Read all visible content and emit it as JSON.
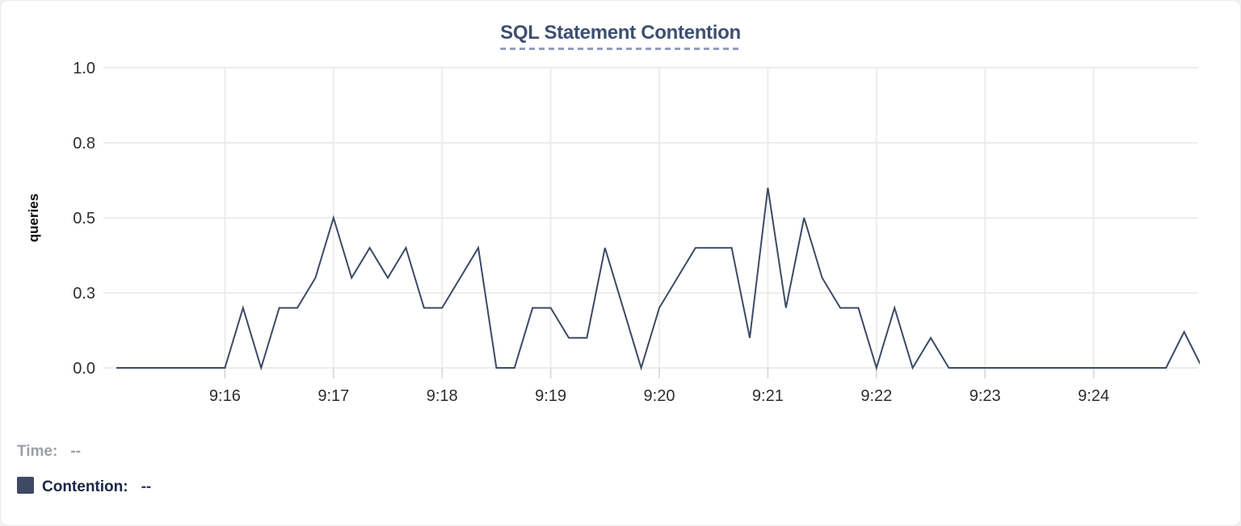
{
  "card": {
    "title": "SQL Statement Contention"
  },
  "colors": {
    "title": "#3e4f70",
    "title_underline": "#939cc0",
    "line": "#3b4a66",
    "grid": "#ececec",
    "tick": "#dcdcdc",
    "axis_text": "#2d2d2d",
    "ylabel_text": "#0a0a0a",
    "swatch": "#3e4a63"
  },
  "legend": {
    "time_label": "Time:",
    "time_value": "--",
    "series_label": "Contention:",
    "series_value": "--"
  },
  "chart_data": {
    "type": "line",
    "title": "SQL Statement Contention",
    "xlabel": "",
    "ylabel": "queries",
    "ylim": [
      0,
      1
    ],
    "grid": true,
    "legend_position": "below-left",
    "y_ticks": [
      {
        "value": 0.0,
        "label": "0.0"
      },
      {
        "value": 0.25,
        "label": "0.3"
      },
      {
        "value": 0.5,
        "label": "0.5"
      },
      {
        "value": 0.75,
        "label": "0.8"
      },
      {
        "value": 1.0,
        "label": "1.0"
      }
    ],
    "x_ticks": [
      "9:16",
      "9:17",
      "9:18",
      "9:19",
      "9:20",
      "9:21",
      "9:22",
      "9:23",
      "9:24"
    ],
    "series": [
      {
        "name": "Contention",
        "color": "#3b4a66",
        "x": [
          "9:15:00",
          "9:15:10",
          "9:15:20",
          "9:15:30",
          "9:15:40",
          "9:15:50",
          "9:16:00",
          "9:16:10",
          "9:16:20",
          "9:16:30",
          "9:16:40",
          "9:16:50",
          "9:17:00",
          "9:17:10",
          "9:17:20",
          "9:17:30",
          "9:17:40",
          "9:17:50",
          "9:18:00",
          "9:18:10",
          "9:18:20",
          "9:18:30",
          "9:18:40",
          "9:18:50",
          "9:19:00",
          "9:19:10",
          "9:19:20",
          "9:19:30",
          "9:19:40",
          "9:19:50",
          "9:20:00",
          "9:20:10",
          "9:20:20",
          "9:20:30",
          "9:20:40",
          "9:20:50",
          "9:21:00",
          "9:21:10",
          "9:21:20",
          "9:21:30",
          "9:21:40",
          "9:21:50",
          "9:22:00",
          "9:22:10",
          "9:22:20",
          "9:22:30",
          "9:22:40",
          "9:22:50",
          "9:23:00",
          "9:23:10",
          "9:23:20",
          "9:23:30",
          "9:23:40",
          "9:23:50",
          "9:24:00",
          "9:24:10",
          "9:24:20",
          "9:24:30",
          "9:24:40",
          "9:24:50",
          "9:25:00"
        ],
        "values": [
          0,
          0,
          0,
          0,
          0,
          0,
          0,
          0.2,
          0,
          0.2,
          0.2,
          0.3,
          0.5,
          0.3,
          0.4,
          0.3,
          0.4,
          0.2,
          0.2,
          0.3,
          0.4,
          0,
          0,
          0.2,
          0.2,
          0.1,
          0.1,
          0.4,
          0.2,
          0,
          0.2,
          0.3,
          0.4,
          0.4,
          0.4,
          0.1,
          0.6,
          0.2,
          0.5,
          0.3,
          0.2,
          0.2,
          0,
          0.2,
          0,
          0.1,
          0,
          0,
          0,
          0,
          0,
          0,
          0,
          0,
          0,
          0,
          0,
          0,
          0,
          0.12,
          0
        ]
      }
    ]
  }
}
